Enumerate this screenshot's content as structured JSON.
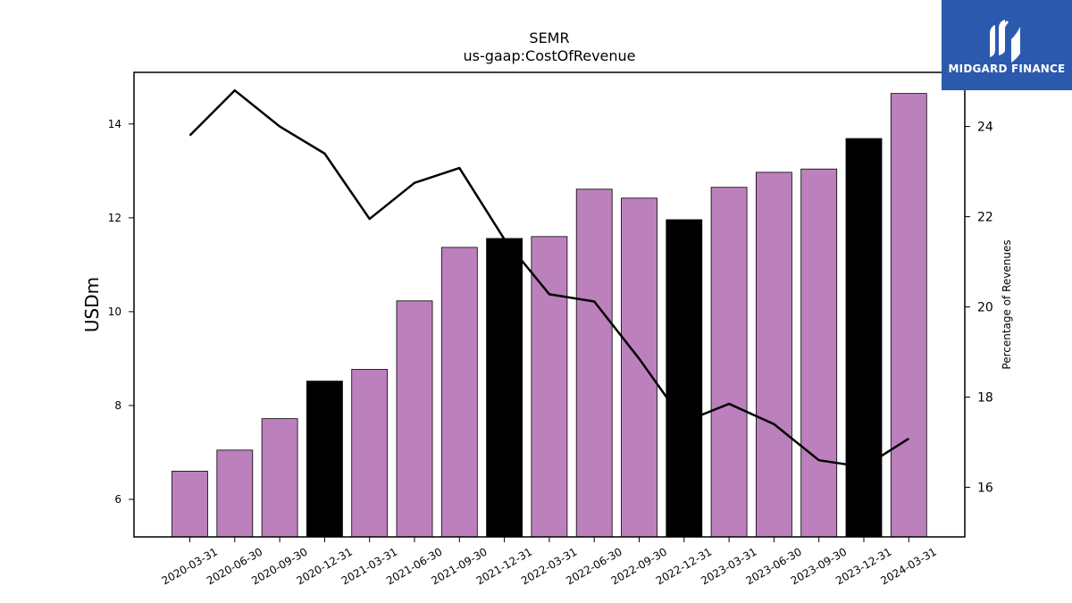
{
  "brand": {
    "name": "MIDGARD FINANCE",
    "color": "#2b59ad"
  },
  "chart_data": {
    "type": "bar",
    "title": "SEMR",
    "subtitle": "us-gaap:CostOfRevenue",
    "ylabel": "USDm",
    "y2label": "Percentage of Revenues",
    "categories": [
      "2020-03-31",
      "2020-06-30",
      "2020-09-30",
      "2020-12-31",
      "2021-03-31",
      "2021-06-30",
      "2021-09-30",
      "2021-12-31",
      "2022-03-31",
      "2022-06-30",
      "2022-09-30",
      "2022-12-31",
      "2023-03-31",
      "2023-06-30",
      "2023-09-30",
      "2023-12-31",
      "2024-03-31"
    ],
    "series": [
      {
        "values": [
          6.6,
          7.05,
          7.72,
          8.52,
          8.77,
          10.23,
          11.37,
          11.56,
          11.6,
          12.61,
          12.42,
          11.96,
          12.65,
          12.97,
          13.04,
          13.69,
          14.65
        ],
        "type": "bar"
      },
      {
        "values": [
          23.8,
          24.8,
          24.0,
          23.4,
          21.95,
          22.75,
          23.08,
          21.5,
          20.28,
          20.12,
          18.85,
          17.45,
          17.85,
          17.4,
          16.6,
          16.45,
          17.08
        ],
        "type": "line",
        "axis": "right"
      }
    ],
    "bar_colors": {
      "default": "#bc80bd",
      "year_end": "#000000"
    },
    "year_end_indices": [
      3,
      7,
      11,
      15
    ],
    "line_color": "#000000",
    "ylim": [
      5.2,
      15.1
    ],
    "y2lim": [
      14.9,
      25.2
    ],
    "yticks": [
      "6",
      "8",
      "10",
      "12",
      "14"
    ],
    "y2ticks": [
      "16",
      "18",
      "20",
      "22",
      "24"
    ]
  }
}
